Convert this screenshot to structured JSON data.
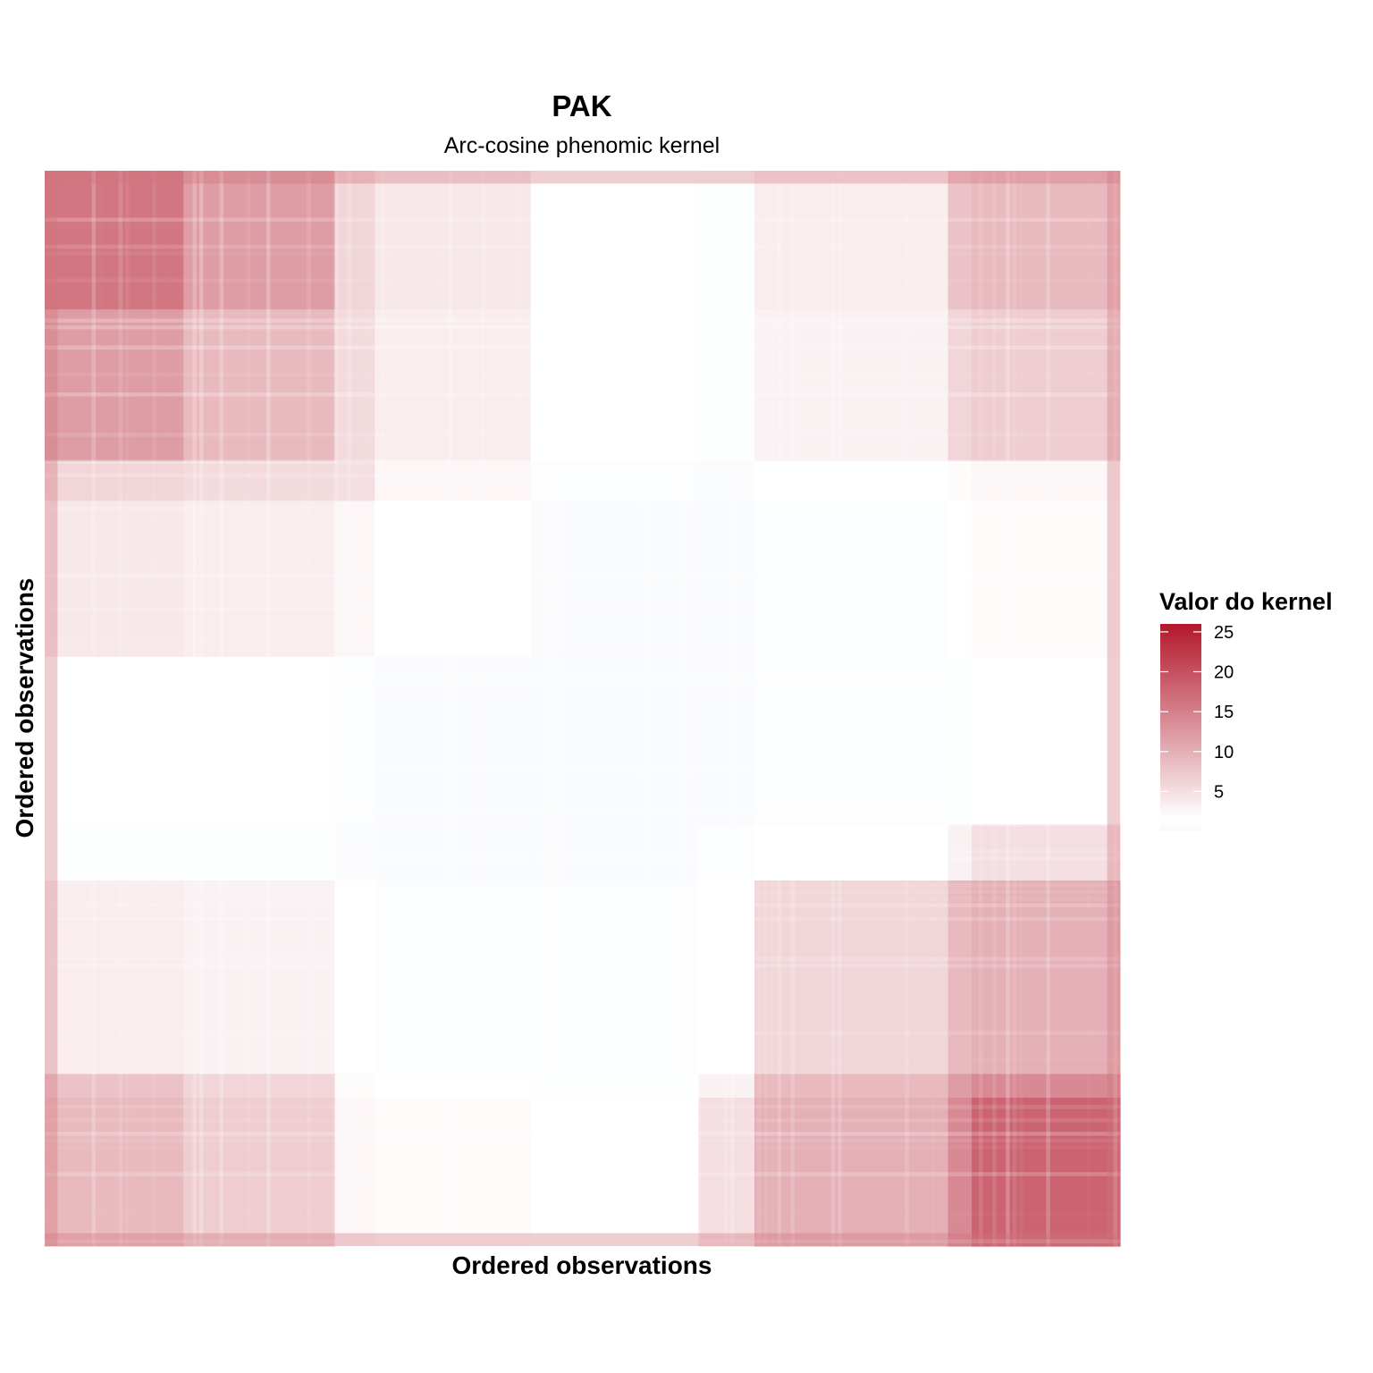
{
  "chart_data": {
    "type": "heatmap",
    "title": "PAK",
    "subtitle": "Arc-cosine phenomic kernel",
    "xlabel": "Ordered observations",
    "ylabel": "Ordered observations",
    "color_scale": {
      "title": "Valor do kernel",
      "low_color": "#f7f9fc",
      "mid_color": "#ffffff",
      "high_color": "#b2182b",
      "min": 0,
      "max": 26,
      "ticks": [
        5,
        10,
        15,
        20,
        25
      ]
    },
    "legend_position": "right",
    "grid": false,
    "blocks": [
      "A",
      "B",
      "B",
      "C",
      "D",
      "E",
      "F",
      "F",
      "G",
      "H",
      "I"
    ],
    "block_values": [
      [
        16.0,
        12.0,
        12.0,
        6.0,
        4.0,
        1.5,
        1.2,
        1.2,
        3.5,
        8.0,
        9.0
      ],
      [
        12.0,
        9.0,
        9.0,
        5.5,
        3.5,
        1.5,
        1.2,
        1.2,
        3.0,
        6.0,
        7.0
      ],
      [
        12.0,
        9.0,
        9.0,
        5.5,
        3.5,
        1.5,
        1.2,
        1.2,
        3.0,
        6.0,
        7.0
      ],
      [
        6.0,
        5.5,
        5.5,
        5.0,
        2.5,
        1.0,
        0.8,
        0.8,
        1.5,
        2.0,
        2.5
      ],
      [
        4.0,
        3.5,
        3.5,
        2.5,
        1.5,
        0.6,
        0.6,
        0.6,
        1.0,
        1.5,
        2.0
      ],
      [
        1.5,
        1.5,
        1.5,
        1.0,
        0.6,
        0.4,
        0.6,
        0.6,
        1.0,
        1.2,
        1.5
      ],
      [
        1.2,
        1.2,
        1.2,
        0.8,
        0.6,
        0.6,
        1.0,
        1.0,
        1.5,
        3.0,
        5.0
      ],
      [
        1.2,
        1.2,
        1.2,
        0.8,
        0.6,
        0.6,
        1.0,
        1.0,
        1.5,
        3.0,
        5.0
      ],
      [
        3.5,
        3.0,
        3.0,
        1.5,
        1.0,
        1.0,
        1.5,
        1.5,
        6.0,
        9.0,
        10.0
      ],
      [
        8.0,
        6.0,
        6.0,
        2.0,
        1.5,
        1.2,
        3.0,
        3.0,
        9.0,
        12.0,
        14.0
      ],
      [
        9.0,
        7.0,
        7.0,
        2.5,
        2.0,
        1.5,
        5.0,
        5.0,
        10.0,
        14.0,
        18.0
      ]
    ]
  }
}
